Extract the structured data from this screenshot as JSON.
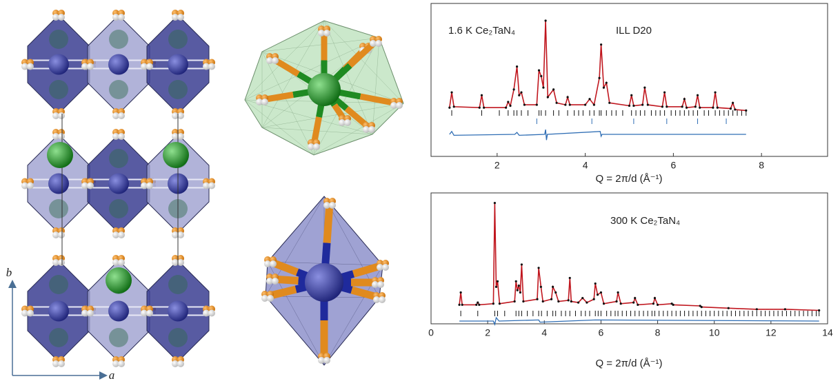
{
  "structure": {
    "axis_labels": [
      "b",
      "a"
    ]
  },
  "chart_data": [
    {
      "type": "line",
      "annotations": [
        "1.6 K Ce₂TaN₄",
        "ILL D20"
      ],
      "x_label": "Q = 2π/d (Å⁻¹)",
      "xlim": [
        0.5,
        9.5
      ],
      "xticks": [
        2,
        4,
        6,
        8
      ],
      "ylim": [
        -42,
        118
      ],
      "color": "#c0161e",
      "marker_color": "#111111",
      "x": [
        0.92,
        0.97,
        1.02,
        1.6,
        1.65,
        1.7,
        2.2,
        2.25,
        2.3,
        2.38,
        2.45,
        2.5,
        2.55,
        2.62,
        2.9,
        2.95,
        3.0,
        3.05,
        3.1,
        3.15,
        3.28,
        3.35,
        3.55,
        3.6,
        3.65,
        4.0,
        4.1,
        4.2,
        4.32,
        4.36,
        4.42,
        4.48,
        4.55,
        5.0,
        5.05,
        5.1,
        5.3,
        5.35,
        5.42,
        5.75,
        5.8,
        5.85,
        6.2,
        6.25,
        6.3,
        6.5,
        6.55,
        6.6,
        6.9,
        6.95,
        7.0,
        7.3,
        7.35,
        7.4,
        7.65
      ],
      "values": [
        9,
        25,
        10,
        9,
        22,
        9,
        9,
        15,
        11,
        28,
        52,
        22,
        25,
        12,
        12,
        48,
        42,
        30,
        100,
        20,
        28,
        14,
        12,
        20,
        12,
        12,
        18,
        12,
        40,
        75,
        30,
        35,
        14,
        11,
        22,
        11,
        12,
        30,
        12,
        10,
        25,
        10,
        10,
        18,
        9,
        10,
        22,
        9,
        9,
        25,
        9,
        8,
        14,
        7,
        6
      ],
      "difference": {
        "color": "#2e6db4",
        "x": [
          0.92,
          0.97,
          1.02,
          2.4,
          2.45,
          2.5,
          3.08,
          3.1,
          3.12,
          3.14,
          4.34,
          4.36,
          4.38,
          7.65
        ],
        "values": [
          0,
          3,
          -1,
          0,
          2,
          -1,
          0,
          5,
          -6,
          0,
          3,
          -2,
          0,
          0
        ]
      },
      "reflections": [
        {
          "color": "#111111",
          "positions": [
            0.97,
            1.65,
            2.05,
            2.25,
            2.38,
            2.45,
            2.55,
            2.7,
            2.95,
            3.0,
            3.1,
            3.28,
            3.4,
            3.6,
            3.75,
            3.85,
            3.95,
            4.1,
            4.2,
            4.32,
            4.36,
            4.48,
            4.6,
            4.7,
            4.85,
            5.05,
            5.15,
            5.25,
            5.35,
            5.5,
            5.6,
            5.7,
            5.8,
            5.95,
            6.05,
            6.15,
            6.25,
            6.35,
            6.45,
            6.55,
            6.7,
            6.8,
            6.95,
            7.05,
            7.15,
            7.25,
            7.35,
            7.45,
            7.55,
            7.65
          ]
        },
        {
          "color": "#2e6db4",
          "positions": [
            2.9,
            4.15,
            5.1,
            5.85,
            6.55,
            7.2
          ]
        }
      ]
    },
    {
      "type": "line",
      "annotations": [
        "300 K Ce₂TaN₄"
      ],
      "x_label": "Q = 2π/d (Å⁻¹)",
      "xlim": [
        0,
        14
      ],
      "xticks": [
        0,
        2,
        4,
        6,
        8,
        10,
        12,
        14
      ],
      "ylim": [
        -8,
        109
      ],
      "color": "#c0161e",
      "marker_color": "#111111",
      "x": [
        1.0,
        1.05,
        1.1,
        1.6,
        1.65,
        1.7,
        2.2,
        2.25,
        2.3,
        2.35,
        2.42,
        2.95,
        3.0,
        3.05,
        3.1,
        3.15,
        3.2,
        3.26,
        3.75,
        3.8,
        3.88,
        3.95,
        4.25,
        4.3,
        4.4,
        4.5,
        4.85,
        4.9,
        4.95,
        5.2,
        5.35,
        5.5,
        5.75,
        5.8,
        5.88,
        6.0,
        6.1,
        6.55,
        6.6,
        6.7,
        7.15,
        7.2,
        7.3,
        7.85,
        7.9,
        8.0,
        8.5,
        8.55,
        9.5,
        9.55,
        10.5,
        11.5,
        12.5,
        13.7
      ],
      "values": [
        9,
        20,
        9,
        9,
        11,
        9,
        10,
        100,
        25,
        30,
        10,
        12,
        30,
        22,
        26,
        20,
        45,
        12,
        14,
        42,
        25,
        12,
        14,
        25,
        20,
        12,
        13,
        33,
        12,
        11,
        15,
        11,
        14,
        28,
        18,
        20,
        10,
        12,
        20,
        10,
        11,
        15,
        9,
        10,
        15,
        9,
        10,
        9,
        8,
        7,
        6,
        5,
        5,
        4
      ],
      "difference": {
        "color": "#2e6db4",
        "x": [
          1.0,
          2.2,
          2.25,
          2.3,
          2.4,
          3.8,
          3.85,
          5.8,
          13.7
        ],
        "values": [
          0,
          0,
          -3,
          3,
          0,
          1,
          -1,
          1,
          0
        ]
      },
      "reflections": [
        {
          "color": "#111111",
          "positions": [
            1.05,
            1.65,
            2.25,
            2.35,
            2.6,
            3.0,
            3.1,
            3.2,
            3.4,
            3.6,
            3.8,
            3.9,
            4.1,
            4.3,
            4.4,
            4.6,
            4.75,
            4.9,
            5.1,
            5.3,
            5.45,
            5.6,
            5.8,
            5.9,
            6.0,
            6.2,
            6.35,
            6.5,
            6.6,
            6.75,
            6.9,
            7.05,
            7.2,
            7.35,
            7.5,
            7.65,
            7.8,
            7.9,
            8.05,
            8.2,
            8.35,
            8.5,
            8.65,
            8.8,
            8.95,
            9.1,
            9.25,
            9.4,
            9.55,
            9.7,
            9.85,
            10.0,
            10.15,
            10.3,
            10.45,
            10.6,
            10.75,
            10.9,
            11.05,
            11.2,
            11.35,
            11.5,
            11.65,
            11.8,
            11.95,
            12.1,
            12.25,
            12.4,
            12.55,
            12.7,
            12.85,
            13.0,
            13.15,
            13.3,
            13.45,
            13.6,
            13.7
          ]
        }
      ]
    }
  ]
}
